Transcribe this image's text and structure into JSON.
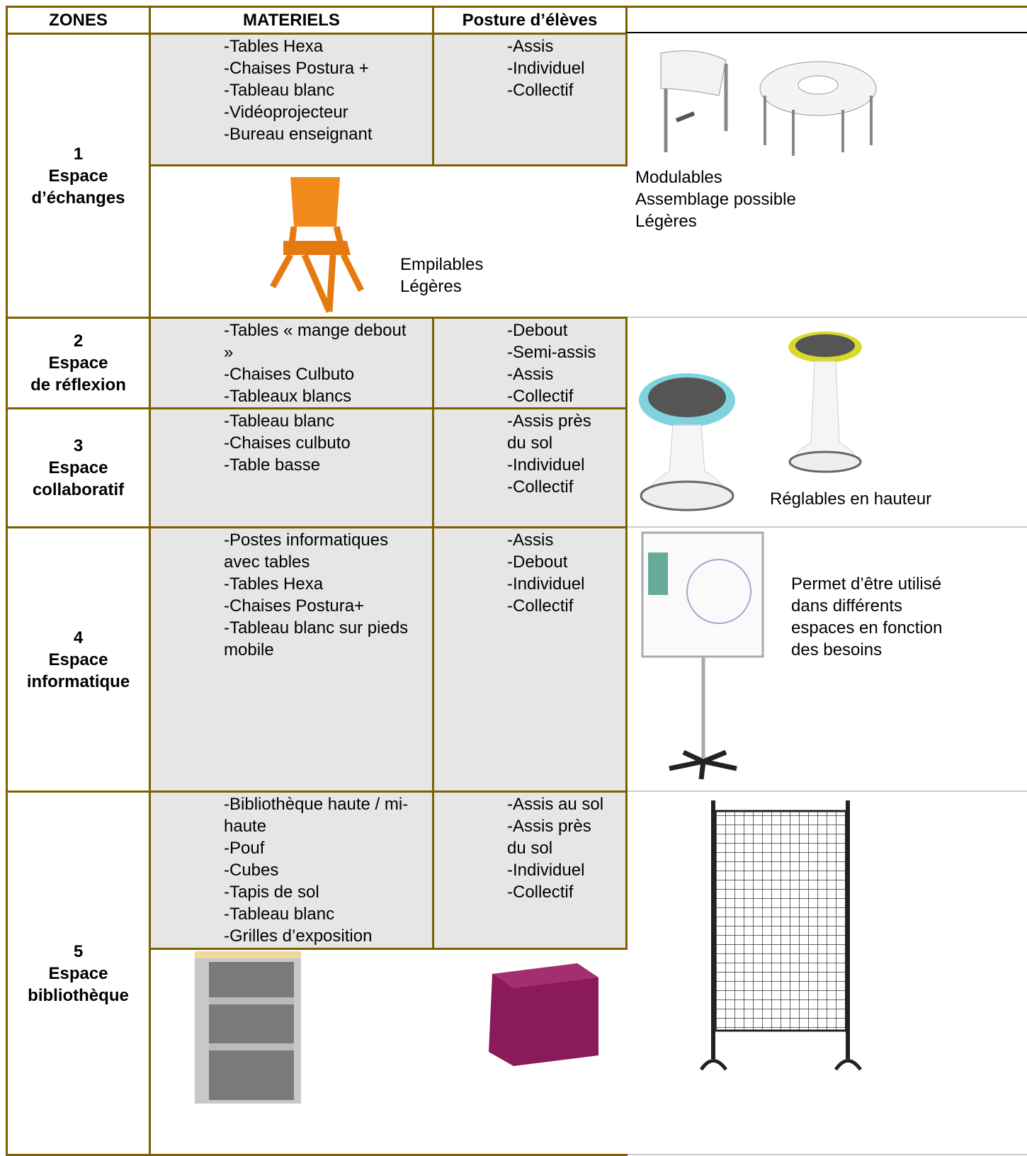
{
  "header": {
    "zones": "ZONES",
    "materiels": "MATERIELS",
    "posture": "Posture d’élèves"
  },
  "rows": [
    {
      "zone": [
        "1",
        "Espace",
        "d’échanges"
      ],
      "materiels": [
        "Tables Hexa",
        "Chaises Postura +",
        "Tableau blanc",
        "Vidéoprojecteur",
        "Bureau enseignant"
      ],
      "posture": [
        "Assis",
        "Individuel",
        "Collectif"
      ],
      "chair_note": [
        "Empilables",
        "Légères"
      ],
      "note": [
        "Modulables",
        "Assemblage possible",
        "Légères"
      ]
    },
    {
      "zone": [
        "2",
        "Espace",
        "de réflexion"
      ],
      "materiels": [
        "Tables « mange debout »",
        "Chaises Culbuto",
        "Tableaux blancs"
      ],
      "posture": [
        "Debout",
        "Semi-assis",
        "Assis",
        "Collectif"
      ],
      "note": [
        "Réglables en hauteur"
      ]
    },
    {
      "zone": [
        "3",
        "Espace",
        "collaboratif"
      ],
      "materiels": [
        "Tableau blanc",
        "Chaises culbuto",
        "Table basse"
      ],
      "posture": [
        "Assis près du sol",
        "Individuel",
        "Collectif"
      ]
    },
    {
      "zone": [
        "4",
        "Espace",
        "informatique"
      ],
      "materiels": [
        "Postes informatiques avec tables",
        "Tables Hexa",
        "Chaises Postura+",
        "Tableau blanc sur pieds mobile"
      ],
      "posture": [
        "Assis",
        "Debout",
        "Individuel",
        "Collectif"
      ],
      "note": [
        "Permet d’être utilisé",
        "dans différents",
        "espaces en fonction",
        "des besoins"
      ]
    },
    {
      "zone": [
        "5",
        "Espace",
        "bibliothèque"
      ],
      "materiels": [
        "Bibliothèque haute / mi-haute",
        "Pouf",
        "Cubes",
        "Tapis de sol",
        "Tableau blanc",
        "Grilles d’exposition"
      ],
      "posture": [
        "Assis au sol",
        "Assis près du sol",
        "Individuel",
        "Collectif"
      ]
    }
  ]
}
